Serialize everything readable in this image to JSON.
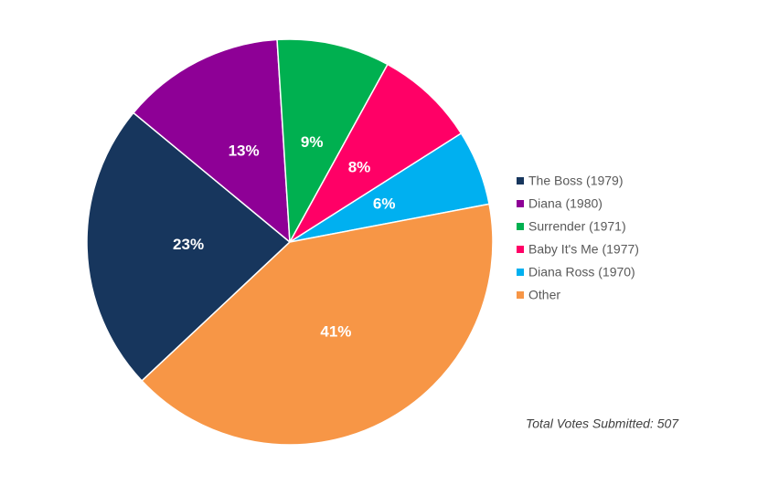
{
  "chart_data": {
    "type": "pie",
    "categories": [
      "The Boss (1979)",
      "Diana (1980)",
      "Surrender (1971)",
      "Baby It's Me (1977)",
      "Diana Ross (1970)",
      "Other"
    ],
    "values": [
      23,
      13,
      9,
      8,
      6,
      41
    ],
    "value_labels": [
      "23%",
      "13%",
      "9%",
      "8%",
      "6%",
      "41%"
    ],
    "colors": [
      "#17365d",
      "#8e0096",
      "#00b050",
      "#ff0066",
      "#00b0f0",
      "#f79646"
    ],
    "legend": "right",
    "annotation": "Total Votes Submitted: 507"
  }
}
